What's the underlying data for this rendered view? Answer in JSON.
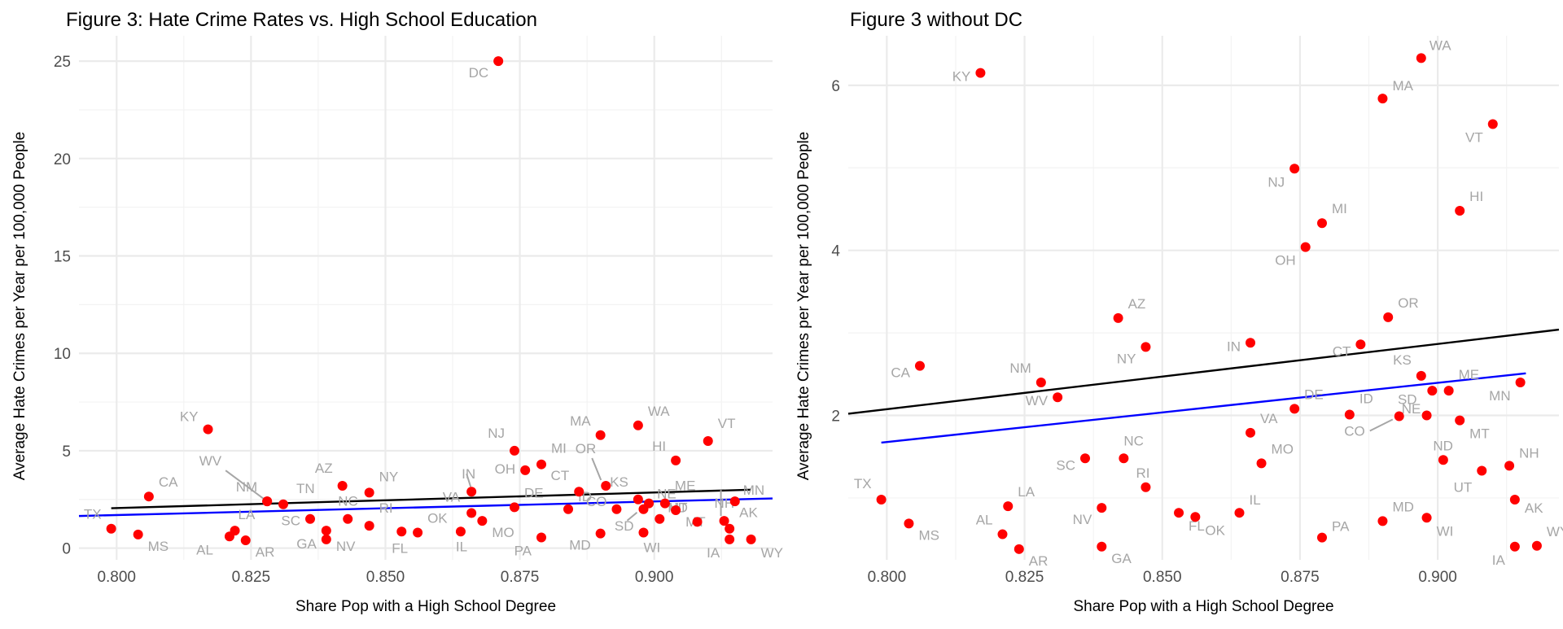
{
  "colors": {
    "point": "#ff0000",
    "ols_line": "#000000",
    "robust_line": "#0000ff",
    "label": "#a6a6a6",
    "grid": "#ebebeb"
  },
  "chart_data": [
    {
      "type": "scatter",
      "title": "Figure 3: Hate Crime Rates vs. High School Education",
      "xlabel": "Share Pop with a High School Degree",
      "ylabel": "Average Hate Crimes per Year per 100,000 People",
      "xlim": [
        0.793,
        0.922
      ],
      "ylim": [
        -0.6,
        26.3
      ],
      "x_ticks": [
        0.8,
        0.825,
        0.85,
        0.875,
        0.9
      ],
      "x_tick_labels": [
        "0.800",
        "0.825",
        "0.850",
        "0.875",
        "0.900"
      ],
      "y_ticks": [
        0,
        5,
        10,
        15,
        20,
        25
      ],
      "y_tick_labels": [
        "0",
        "5",
        "10",
        "15",
        "20",
        "25"
      ],
      "grid": true,
      "lines": [
        {
          "color": "#000000",
          "x": [
            0.799,
            0.918
          ],
          "y": [
            2.05,
            3.0
          ]
        },
        {
          "color": "#0000ff",
          "x": [
            0.793,
            0.922
          ],
          "y": [
            1.65,
            2.55
          ]
        }
      ],
      "points": [
        {
          "label": "TX",
          "x": 0.799,
          "y": 1.0
        },
        {
          "label": "MS",
          "x": 0.804,
          "y": 0.7
        },
        {
          "label": "CA",
          "x": 0.806,
          "y": 2.65
        },
        {
          "label": "KY",
          "x": 0.817,
          "y": 6.1
        },
        {
          "label": "AL",
          "x": 0.821,
          "y": 0.6
        },
        {
          "label": "LA",
          "x": 0.822,
          "y": 0.9
        },
        {
          "label": "AR",
          "x": 0.824,
          "y": 0.4
        },
        {
          "label": "NM",
          "x": 0.828,
          "y": 2.4
        },
        {
          "label": "WV",
          "x": 0.828,
          "y": 2.4
        },
        {
          "label": "TN",
          "x": 0.831,
          "y": 2.25
        },
        {
          "label": "SC",
          "x": 0.836,
          "y": 1.5
        },
        {
          "label": "GA",
          "x": 0.839,
          "y": 0.9
        },
        {
          "label": "NV",
          "x": 0.839,
          "y": 0.45
        },
        {
          "label": "AZ",
          "x": 0.842,
          "y": 3.2
        },
        {
          "label": "NC",
          "x": 0.843,
          "y": 1.5
        },
        {
          "label": "NY",
          "x": 0.847,
          "y": 2.85
        },
        {
          "label": "RI",
          "x": 0.847,
          "y": 1.15
        },
        {
          "label": "FL",
          "x": 0.853,
          "y": 0.85
        },
        {
          "label": "OK",
          "x": 0.856,
          "y": 0.8
        },
        {
          "label": "IL",
          "x": 0.864,
          "y": 0.85
        },
        {
          "label": "IN",
          "x": 0.866,
          "y": 2.9
        },
        {
          "label": "VA",
          "x": 0.866,
          "y": 1.8
        },
        {
          "label": "MO",
          "x": 0.868,
          "y": 1.4
        },
        {
          "label": "DC",
          "x": 0.871,
          "y": 25.0
        },
        {
          "label": "NJ",
          "x": 0.874,
          "y": 5.0
        },
        {
          "label": "DE",
          "x": 0.874,
          "y": 2.1
        },
        {
          "label": "OH",
          "x": 0.876,
          "y": 4.0
        },
        {
          "label": "MI",
          "x": 0.879,
          "y": 4.3
        },
        {
          "label": "PA",
          "x": 0.879,
          "y": 0.55
        },
        {
          "label": "ID",
          "x": 0.884,
          "y": 2.0
        },
        {
          "label": "CT",
          "x": 0.886,
          "y": 2.9
        },
        {
          "label": "MA",
          "x": 0.89,
          "y": 5.8
        },
        {
          "label": "MD",
          "x": 0.89,
          "y": 0.75
        },
        {
          "label": "OR",
          "x": 0.891,
          "y": 3.2
        },
        {
          "label": "CO",
          "x": 0.893,
          "y": 2.0
        },
        {
          "label": "WA",
          "x": 0.897,
          "y": 6.3
        },
        {
          "label": "KS",
          "x": 0.897,
          "y": 2.5
        },
        {
          "label": "SD",
          "x": 0.898,
          "y": 2.0
        },
        {
          "label": "WI",
          "x": 0.898,
          "y": 0.8
        },
        {
          "label": "NE",
          "x": 0.899,
          "y": 2.3
        },
        {
          "label": "ND",
          "x": 0.901,
          "y": 1.5
        },
        {
          "label": "ME",
          "x": 0.902,
          "y": 2.3
        },
        {
          "label": "HI",
          "x": 0.904,
          "y": 4.5
        },
        {
          "label": "MT",
          "x": 0.904,
          "y": 1.95
        },
        {
          "label": "UT",
          "x": 0.908,
          "y": 1.35
        },
        {
          "label": "VT",
          "x": 0.91,
          "y": 5.5
        },
        {
          "label": "NH",
          "x": 0.913,
          "y": 1.4
        },
        {
          "label": "AK",
          "x": 0.914,
          "y": 1.0
        },
        {
          "label": "IA",
          "x": 0.914,
          "y": 0.45
        },
        {
          "label": "MN",
          "x": 0.915,
          "y": 2.4
        },
        {
          "label": "WY",
          "x": 0.918,
          "y": 0.45
        }
      ]
    },
    {
      "type": "scatter",
      "title": "Figure 3 without DC",
      "xlabel": "Share Pop with a High School Degree",
      "ylabel": "Average Hate Crimes per Year per 100,000 People",
      "xlim": [
        0.793,
        0.922
      ],
      "ylim": [
        0.25,
        6.6
      ],
      "x_ticks": [
        0.8,
        0.825,
        0.85,
        0.875,
        0.9
      ],
      "x_tick_labels": [
        "0.800",
        "0.825",
        "0.850",
        "0.875",
        "0.900"
      ],
      "y_ticks": [
        2,
        4,
        6
      ],
      "y_tick_labels": [
        "2",
        "4",
        "6"
      ],
      "grid": true,
      "lines": [
        {
          "color": "#000000",
          "x": [
            0.793,
            0.922
          ],
          "y": [
            2.02,
            3.04
          ]
        },
        {
          "color": "#0000ff",
          "x": [
            0.799,
            0.916
          ],
          "y": [
            1.67,
            2.51
          ]
        }
      ],
      "points": [
        {
          "label": "TX",
          "x": 0.799,
          "y": 0.98
        },
        {
          "label": "MS",
          "x": 0.804,
          "y": 0.69
        },
        {
          "label": "CA",
          "x": 0.806,
          "y": 2.6
        },
        {
          "label": "KY",
          "x": 0.817,
          "y": 6.15
        },
        {
          "label": "AL",
          "x": 0.821,
          "y": 0.56
        },
        {
          "label": "LA",
          "x": 0.822,
          "y": 0.9
        },
        {
          "label": "AR",
          "x": 0.824,
          "y": 0.38
        },
        {
          "label": "NM",
          "x": 0.828,
          "y": 2.4
        },
        {
          "label": "WV",
          "x": 0.831,
          "y": 2.22
        },
        {
          "label": "SC",
          "x": 0.836,
          "y": 1.48
        },
        {
          "label": "NV",
          "x": 0.839,
          "y": 0.88
        },
        {
          "label": "GA",
          "x": 0.839,
          "y": 0.41
        },
        {
          "label": "AZ",
          "x": 0.842,
          "y": 3.18
        },
        {
          "label": "NC",
          "x": 0.843,
          "y": 1.48
        },
        {
          "label": "NY",
          "x": 0.847,
          "y": 2.83
        },
        {
          "label": "RI",
          "x": 0.847,
          "y": 1.13
        },
        {
          "label": "FL",
          "x": 0.853,
          "y": 0.82
        },
        {
          "label": "OK",
          "x": 0.856,
          "y": 0.77
        },
        {
          "label": "IL",
          "x": 0.864,
          "y": 0.82
        },
        {
          "label": "IN",
          "x": 0.866,
          "y": 2.88
        },
        {
          "label": "VA",
          "x": 0.866,
          "y": 1.79
        },
        {
          "label": "MO",
          "x": 0.868,
          "y": 1.42
        },
        {
          "label": "NJ",
          "x": 0.874,
          "y": 4.99
        },
        {
          "label": "DE",
          "x": 0.874,
          "y": 2.08
        },
        {
          "label": "OH",
          "x": 0.876,
          "y": 4.04
        },
        {
          "label": "MI",
          "x": 0.879,
          "y": 4.33
        },
        {
          "label": "PA",
          "x": 0.879,
          "y": 0.52
        },
        {
          "label": "ID",
          "x": 0.884,
          "y": 2.01
        },
        {
          "label": "CT",
          "x": 0.886,
          "y": 2.86
        },
        {
          "label": "MA",
          "x": 0.89,
          "y": 5.84
        },
        {
          "label": "MD",
          "x": 0.89,
          "y": 0.72
        },
        {
          "label": "OR",
          "x": 0.891,
          "y": 3.19
        },
        {
          "label": "CO",
          "x": 0.893,
          "y": 1.99
        },
        {
          "label": "WA",
          "x": 0.897,
          "y": 6.33
        },
        {
          "label": "KS",
          "x": 0.897,
          "y": 2.48
        },
        {
          "label": "SD",
          "x": 0.898,
          "y": 2.0
        },
        {
          "label": "WI",
          "x": 0.898,
          "y": 0.76
        },
        {
          "label": "NE",
          "x": 0.899,
          "y": 2.3
        },
        {
          "label": "ND",
          "x": 0.901,
          "y": 1.46
        },
        {
          "label": "ME",
          "x": 0.902,
          "y": 2.3
        },
        {
          "label": "HI",
          "x": 0.904,
          "y": 4.48
        },
        {
          "label": "MT",
          "x": 0.904,
          "y": 1.94
        },
        {
          "label": "UT",
          "x": 0.908,
          "y": 1.33
        },
        {
          "label": "VT",
          "x": 0.91,
          "y": 5.53
        },
        {
          "label": "NH",
          "x": 0.913,
          "y": 1.39
        },
        {
          "label": "AK",
          "x": 0.914,
          "y": 0.98
        },
        {
          "label": "IA",
          "x": 0.914,
          "y": 0.41
        },
        {
          "label": "MN",
          "x": 0.915,
          "y": 2.4
        },
        {
          "label": "WY",
          "x": 0.918,
          "y": 0.42
        }
      ]
    }
  ]
}
